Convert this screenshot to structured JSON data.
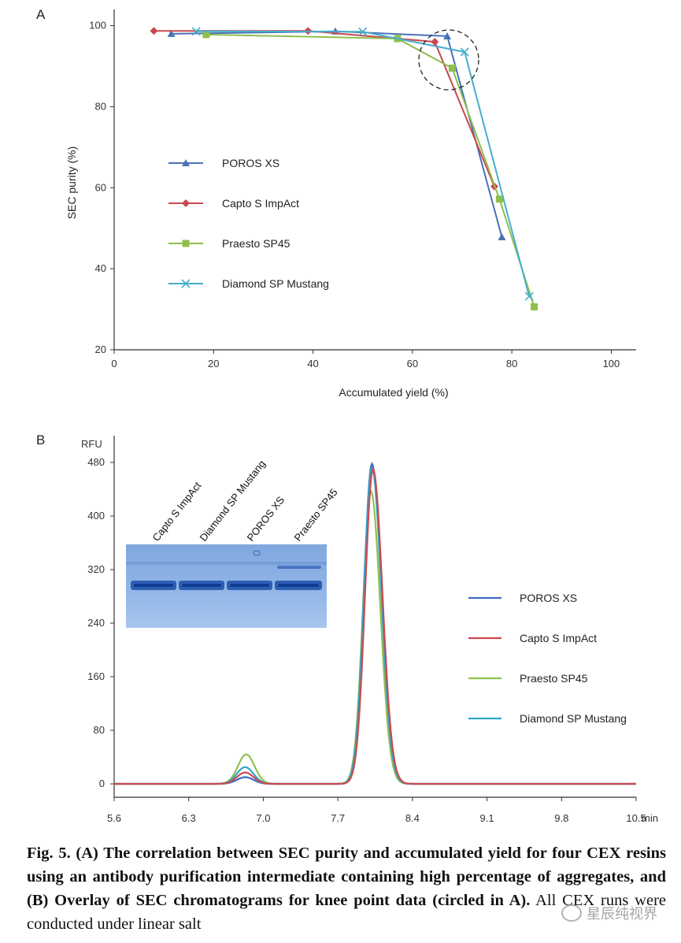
{
  "chart_data": [
    {
      "type": "line",
      "panel_label": "A",
      "xlabel": "Accumulated yield (%)",
      "ylabel": "SEC purity (%)",
      "xlim": [
        0,
        105
      ],
      "ylim": [
        20,
        104
      ],
      "xticks": [
        0,
        20,
        40,
        60,
        80,
        100
      ],
      "yticks": [
        20,
        40,
        60,
        80,
        100
      ],
      "legend_position": "center-left",
      "annotation": "dashed circle around knee points",
      "series": [
        {
          "name": "POROS XS",
          "color": "#4a72b8",
          "marker": "triangle",
          "points": [
            [
              11.5,
              98.0
            ],
            [
              44.5,
              98.6
            ],
            [
              67,
              97.4
            ],
            [
              78,
              47.8
            ]
          ]
        },
        {
          "name": "Capto S ImpAct",
          "color": "#c8484f",
          "marker": "diamond",
          "points": [
            [
              8,
              98.7
            ],
            [
              39,
              98.7
            ],
            [
              64.5,
              96.0
            ],
            [
              76.5,
              60.3
            ]
          ]
        },
        {
          "name": "Praesto SP45",
          "color": "#8fbf4d",
          "marker": "square",
          "points": [
            [
              18.5,
              97.8
            ],
            [
              57,
              96.8
            ],
            [
              68,
              89.5
            ],
            [
              77.5,
              57.2
            ],
            [
              84.5,
              30.6
            ]
          ]
        },
        {
          "name": "Diamond SP Mustang",
          "color": "#45aecb",
          "marker": "x",
          "points": [
            [
              16.5,
              98.6
            ],
            [
              50,
              98.5
            ],
            [
              70.5,
              93.5
            ],
            [
              83.5,
              33.2
            ]
          ]
        }
      ]
    },
    {
      "type": "line",
      "panel_label": "B",
      "ylabel": "RFU",
      "x_unit": "min",
      "xlim": [
        5.6,
        10.5
      ],
      "ylim": [
        -20,
        520
      ],
      "xticks": [
        "5.6",
        "6.3",
        "7.0",
        "7.7",
        "8.4",
        "9.1",
        "9.8",
        "10.5"
      ],
      "yticks": [
        "0",
        "80",
        "160",
        "240",
        "320",
        "400",
        "480"
      ],
      "legend_position": "right",
      "series": [
        {
          "name": "POROS XS",
          "color": "#3e6cc2",
          "aggregate_peak_rt": 6.83,
          "aggregate_peak_height": 10,
          "main_peak_rt": 8.02,
          "main_peak_height": 478
        },
        {
          "name": "Capto S ImpAct",
          "color": "#cc4a4f",
          "aggregate_peak_rt": 6.83,
          "aggregate_peak_height": 17,
          "main_peak_rt": 8.03,
          "main_peak_height": 470
        },
        {
          "name": "Praesto SP45",
          "color": "#8fc24e",
          "aggregate_peak_rt": 6.84,
          "aggregate_peak_height": 44,
          "main_peak_rt": 8.01,
          "main_peak_height": 437
        },
        {
          "name": "Diamond SP Mustang",
          "color": "#2fa6cc",
          "aggregate_peak_rt": 6.83,
          "aggregate_peak_height": 25,
          "main_peak_rt": 8.02,
          "main_peak_height": 472
        }
      ],
      "inset_gel_lanes": [
        "Capto S ImpAct",
        "Diamond SP Mustang",
        "POROS XS",
        "Praesto SP45"
      ]
    }
  ],
  "caption": {
    "bold": "Fig. 5.  (A) The correlation between SEC purity and accumulated yield for four CEX resins using an antibody purification intermediate containing high percentage of aggregates, and (B) Overlay of SEC chromatograms for knee point data (circled in A).",
    "normal": " All CEX runs were conducted under linear salt"
  },
  "watermark": "星辰纯视界"
}
